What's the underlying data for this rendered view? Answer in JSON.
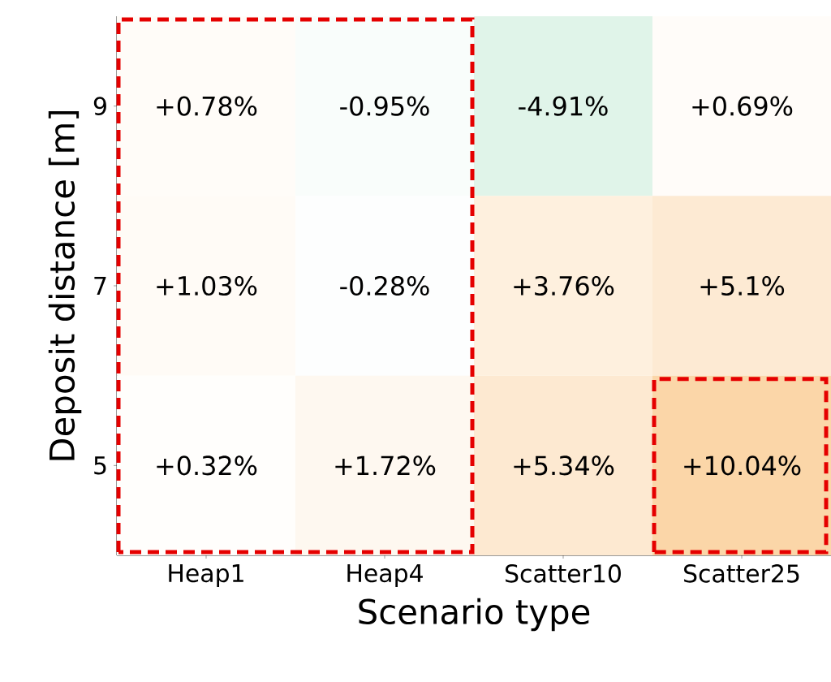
{
  "chart_data": {
    "type": "heatmap",
    "xlabel": "Scenario type",
    "ylabel": "Deposit distance [m]",
    "categories": [
      "Heap1",
      "Heap4",
      "Scatter10",
      "Scatter25"
    ],
    "y_categories": [
      "9",
      "7",
      "5"
    ],
    "cells": [
      [
        0.78,
        -0.95,
        -4.91,
        0.69
      ],
      [
        1.03,
        -0.28,
        3.76,
        5.1
      ],
      [
        0.32,
        1.72,
        5.34,
        10.04
      ]
    ],
    "cell_labels": [
      [
        "+0.78%",
        "-0.95%",
        "-4.91%",
        "+0.69%"
      ],
      [
        "+1.03%",
        "-0.28%",
        "+3.76%",
        "+5.1%"
      ],
      [
        "+0.32%",
        "+1.72%",
        "+5.34%",
        "+10.04%"
      ]
    ]
  }
}
